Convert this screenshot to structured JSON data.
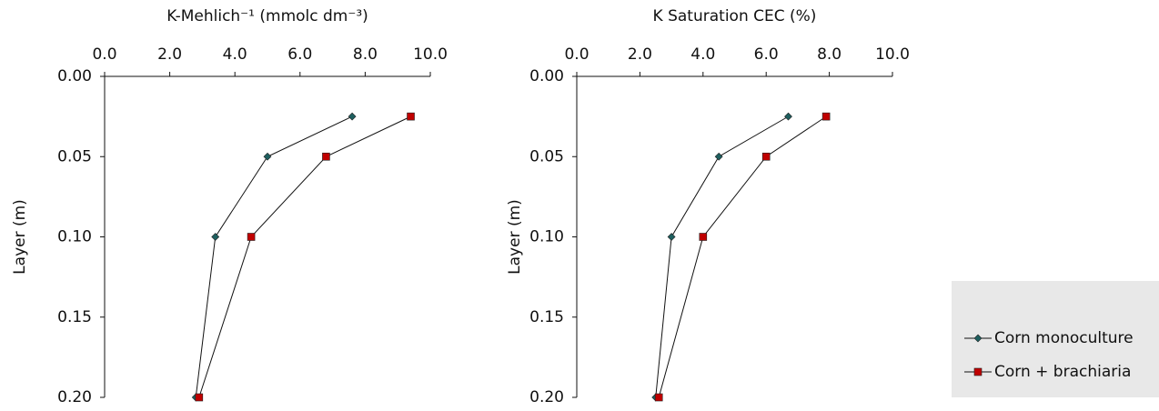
{
  "chart_data": [
    {
      "type": "line",
      "title": "K-Mehlich⁻¹ (mmolc dm⁻³)",
      "y_label": "Layer (m)",
      "y": [
        0.025,
        0.05,
        0.1,
        0.2
      ],
      "series": [
        {
          "name": "Corn monoculture",
          "color": "#1e5f5f",
          "marker": "diamond",
          "values": [
            7.6,
            5.0,
            3.4,
            2.8
          ]
        },
        {
          "name": "Corn + brachiaria",
          "color": "#c00000",
          "marker": "square",
          "values": [
            9.4,
            6.8,
            4.5,
            2.9
          ]
        }
      ],
      "xlim": [
        0,
        10
      ],
      "xticks": [
        {
          "value": 0,
          "label": "0.0"
        },
        {
          "value": 2,
          "label": "2.0"
        },
        {
          "value": 4,
          "label": "4.0"
        },
        {
          "value": 6,
          "label": "6.0"
        },
        {
          "value": 8,
          "label": "8.0"
        },
        {
          "value": 10,
          "label": "10.0"
        }
      ],
      "ylim": [
        0,
        0.2
      ],
      "yticks": [
        {
          "value": 0,
          "label": "0.00"
        },
        {
          "value": 0.05,
          "label": "0.05"
        },
        {
          "value": 0.1,
          "label": "0.10"
        },
        {
          "value": 0.15,
          "label": "0.15"
        },
        {
          "value": 0.2,
          "label": "0.20"
        }
      ]
    },
    {
      "type": "line",
      "title": "K Saturation CEC (%)",
      "y_label": "Layer (m)",
      "y": [
        0.025,
        0.05,
        0.1,
        0.2
      ],
      "series": [
        {
          "color": "#1e5f5f",
          "marker": "diamond",
          "values": [
            6.7,
            4.5,
            3.0,
            2.5
          ]
        },
        {
          "color": "#c00000",
          "marker": "square",
          "values": [
            7.9,
            6.0,
            4.0,
            2.6
          ]
        }
      ],
      "xlim": [
        0,
        10
      ],
      "xticks": [
        {
          "value": 0,
          "label": "0.0"
        },
        {
          "value": 2,
          "label": "2.0"
        },
        {
          "value": 4,
          "label": "4.0"
        },
        {
          "value": 6,
          "label": "6.0"
        },
        {
          "value": 8,
          "label": "8.0"
        },
        {
          "value": 10,
          "label": "10.0"
        }
      ],
      "ylim": [
        0,
        0.2
      ],
      "yticks": [
        {
          "value": 0,
          "label": "0.00"
        },
        {
          "value": 0.05,
          "label": "0.05"
        },
        {
          "value": 0.1,
          "label": "0.10"
        },
        {
          "value": 0.15,
          "label": "0.15"
        },
        {
          "value": 0.2,
          "label": "0.20"
        }
      ],
      "legend": "lower right"
    }
  ]
}
